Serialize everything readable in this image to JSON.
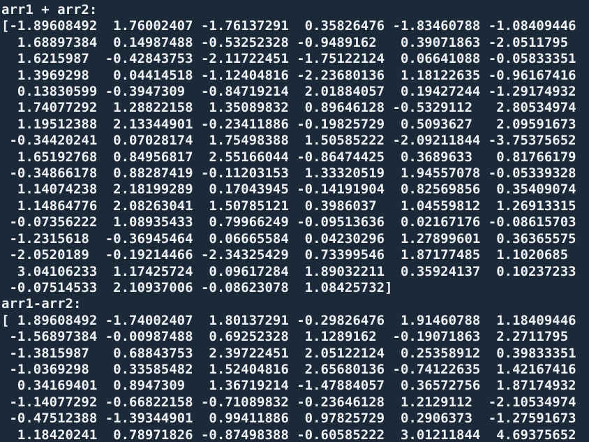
{
  "colors": {
    "background": "#1c2938",
    "text": "#eef1f4"
  },
  "terminal": {
    "sections": [
      {
        "label": "arr1 + arr2:",
        "lines": [
          "[-1.89608492  1.76002407 -1.76137291  0.35826476 -1.83460788 -1.08409446",
          "  1.68897384  0.14987488 -0.53252328 -0.9489162   0.39071863 -2.0511795",
          "  1.6215987  -0.42843753 -2.11722451 -1.75122124  0.06641088 -0.05833351",
          "  1.3969298   0.04414518 -1.12404816 -2.23680136  1.18122635 -0.96167416",
          "  0.13830599 -0.3947309  -0.84719214  2.01884057  0.19427244 -1.29174932",
          "  1.74077292  1.28822158  1.35089832  0.89646128 -0.5329112   2.80534974",
          "  1.19512388  2.13344901 -0.23411886 -0.19825729  0.5093627   2.09591673",
          " -0.34420241  0.07028174  1.75498388  1.50585222 -2.09211844 -3.75375652",
          "  1.65192768  0.84956817  2.55166044 -0.86474425  0.3689633   0.81766179",
          " -0.34866178  0.88287419 -0.11203153  1.33320519  1.94557078 -0.05339328",
          "  1.14074238  2.18199289  0.17043945 -0.14191904  0.82569856  0.35409074",
          "  1.14864776  2.08263041  1.50785121  0.3986037   1.04559812  1.26913315",
          " -0.07356222  1.08935433  0.79966249 -0.09513636  0.02167176 -0.08615703",
          " -1.2315618  -0.36945464  0.06665584  0.04230296  1.27899601  0.36365575",
          " -2.0520189  -0.19214466 -2.34325429  0.73399546  1.87177485  1.1020685",
          "  3.04106233  1.17425724  0.09617284  1.89032211  0.35924137  0.10237233",
          " -0.07514533  2.10937006 -0.08623078  1.08425732]"
        ]
      },
      {
        "label": "arr1-arr2:",
        "lines": [
          "[ 1.89608492 -1.74002407  1.80137291 -0.29826476  1.91460788  1.18409446",
          " -1.56897384 -0.00987488  0.69252328  1.1289162  -0.19071863  2.2711795",
          " -1.3815987   0.68843753  2.39722451  2.05122124  0.25358912  0.39833351",
          " -1.0369298   0.33585482  1.52404816  2.65680136 -0.74122635  1.42167416",
          "  0.34169401  0.8947309   1.36719214 -1.47884057  0.36572756  1.87174932",
          " -1.14077292 -0.66822158 -0.71089832 -0.23646128  1.2129112  -2.10534974",
          " -0.47512388 -1.39344901  0.99411886  0.97825729  0.2906373  -1.27591673",
          "  1.18420241  0.78971826 -0.87498388 -0.60585222  3.01211844  4.69375652"
        ]
      }
    ]
  }
}
